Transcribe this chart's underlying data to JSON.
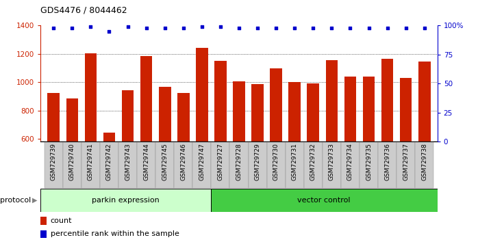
{
  "title": "GDS4476 / 8044462",
  "samples": [
    "GSM729739",
    "GSM729740",
    "GSM729741",
    "GSM729742",
    "GSM729743",
    "GSM729744",
    "GSM729745",
    "GSM729746",
    "GSM729747",
    "GSM729727",
    "GSM729728",
    "GSM729729",
    "GSM729730",
    "GSM729731",
    "GSM729732",
    "GSM729733",
    "GSM729734",
    "GSM729735",
    "GSM729736",
    "GSM729737",
    "GSM729738"
  ],
  "counts": [
    925,
    885,
    1205,
    645,
    940,
    1185,
    965,
    925,
    1240,
    1150,
    1005,
    985,
    1095,
    1000,
    990,
    1155,
    1040,
    1040,
    1165,
    1030,
    1145
  ],
  "percentile_ranks": [
    98,
    98,
    99,
    95,
    99,
    98,
    98,
    98,
    99,
    99,
    98,
    98,
    98,
    98,
    98,
    98,
    98,
    98,
    98,
    98,
    98
  ],
  "group1_label": "parkin expression",
  "group2_label": "vector control",
  "group1_count": 9,
  "group2_count": 12,
  "protocol_label": "protocol",
  "bar_color": "#cc2200",
  "dot_color": "#0000cc",
  "ylim_left": [
    580,
    1400
  ],
  "ylim_right": [
    0,
    100
  ],
  "yticks_left": [
    600,
    800,
    1000,
    1200,
    1400
  ],
  "yticks_right": [
    0,
    25,
    50,
    75,
    100
  ],
  "group1_color": "#ccffcc",
  "group2_color": "#44cc44",
  "xtick_bg": "#cccccc",
  "legend_count_label": "count",
  "legend_pct_label": "percentile rank within the sample",
  "gridline_values": [
    800,
    1000,
    1200
  ]
}
